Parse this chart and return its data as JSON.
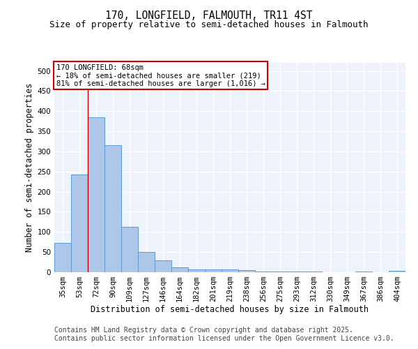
{
  "title_line1": "170, LONGFIELD, FALMOUTH, TR11 4ST",
  "title_line2": "Size of property relative to semi-detached houses in Falmouth",
  "xlabel": "Distribution of semi-detached houses by size in Falmouth",
  "ylabel": "Number of semi-detached properties",
  "categories": [
    "35sqm",
    "53sqm",
    "72sqm",
    "90sqm",
    "109sqm",
    "127sqm",
    "146sqm",
    "164sqm",
    "182sqm",
    "201sqm",
    "219sqm",
    "238sqm",
    "256sqm",
    "275sqm",
    "293sqm",
    "312sqm",
    "330sqm",
    "349sqm",
    "367sqm",
    "386sqm",
    "404sqm"
  ],
  "values": [
    73,
    243,
    385,
    315,
    113,
    50,
    29,
    13,
    7,
    7,
    7,
    6,
    2,
    1,
    1,
    1,
    0,
    0,
    1,
    0,
    4
  ],
  "bar_color": "#aec6e8",
  "bar_edge_color": "#5b9bd5",
  "annotation_text": "170 LONGFIELD: 68sqm\n← 18% of semi-detached houses are smaller (219)\n81% of semi-detached houses are larger (1,016) →",
  "annotation_box_color": "#ffffff",
  "annotation_box_edge_color": "#cc0000",
  "vline_color": "#cc0000",
  "vline_x": 1.5,
  "ylim": [
    0,
    520
  ],
  "yticks": [
    0,
    50,
    100,
    150,
    200,
    250,
    300,
    350,
    400,
    450,
    500
  ],
  "footer_line1": "Contains HM Land Registry data © Crown copyright and database right 2025.",
  "footer_line2": "Contains public sector information licensed under the Open Government Licence v3.0.",
  "background_color": "#eef2fa",
  "grid_color": "#ffffff",
  "title_fontsize": 10.5,
  "subtitle_fontsize": 9,
  "axis_label_fontsize": 8.5,
  "tick_fontsize": 7.5,
  "footer_fontsize": 7,
  "annotation_fontsize": 7.5
}
